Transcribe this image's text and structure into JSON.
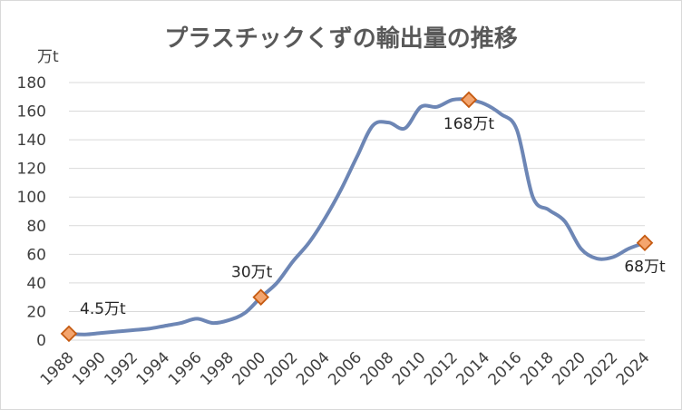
{
  "chart_data": {
    "type": "line",
    "title": "プラスチックくずの輸出量の推移",
    "y_unit_label": "万t",
    "ylim": [
      0,
      180
    ],
    "yticks": [
      0,
      20,
      40,
      60,
      80,
      100,
      120,
      140,
      160,
      180
    ],
    "xlim": [
      1988,
      2024
    ],
    "xticks": [
      1988,
      1990,
      1992,
      1994,
      1996,
      1998,
      2000,
      2002,
      2004,
      2006,
      2008,
      2010,
      2012,
      2014,
      2016,
      2018,
      2020,
      2022,
      2024
    ],
    "grid": "horizontal",
    "legend": "none",
    "colors": {
      "line": "#6d86b5",
      "marker_fill": "#f4a56e",
      "marker_edge": "#c55a11"
    },
    "series": [
      {
        "x": [
          1988,
          1989,
          1990,
          1991,
          1992,
          1993,
          1994,
          1995,
          1996,
          1997,
          1998,
          1999,
          2000,
          2001,
          2002,
          2003,
          2004,
          2005,
          2006,
          2007,
          2008,
          2009,
          2010,
          2011,
          2012,
          2013,
          2014,
          2015,
          2016,
          2017,
          2018,
          2019,
          2020,
          2021,
          2022,
          2023,
          2024
        ],
        "y": [
          4.5,
          4,
          5,
          6,
          7,
          8,
          10,
          12,
          15,
          12,
          14,
          19,
          30,
          40,
          55,
          68,
          85,
          105,
          128,
          150,
          152,
          148,
          163,
          163,
          168,
          168,
          165,
          158,
          147,
          100,
          91,
          83,
          64,
          57,
          58,
          64,
          68
        ]
      }
    ],
    "data_labels": [
      {
        "x": 1988,
        "y": 4.5,
        "text": "4.5万t",
        "pos": "upper-right"
      },
      {
        "x": 2000,
        "y": 30,
        "text": "30万t",
        "pos": "above"
      },
      {
        "x": 2013,
        "y": 168,
        "text": "168万t",
        "pos": "below"
      },
      {
        "x": 2024,
        "y": 68,
        "text": "68万t",
        "pos": "below"
      }
    ]
  }
}
